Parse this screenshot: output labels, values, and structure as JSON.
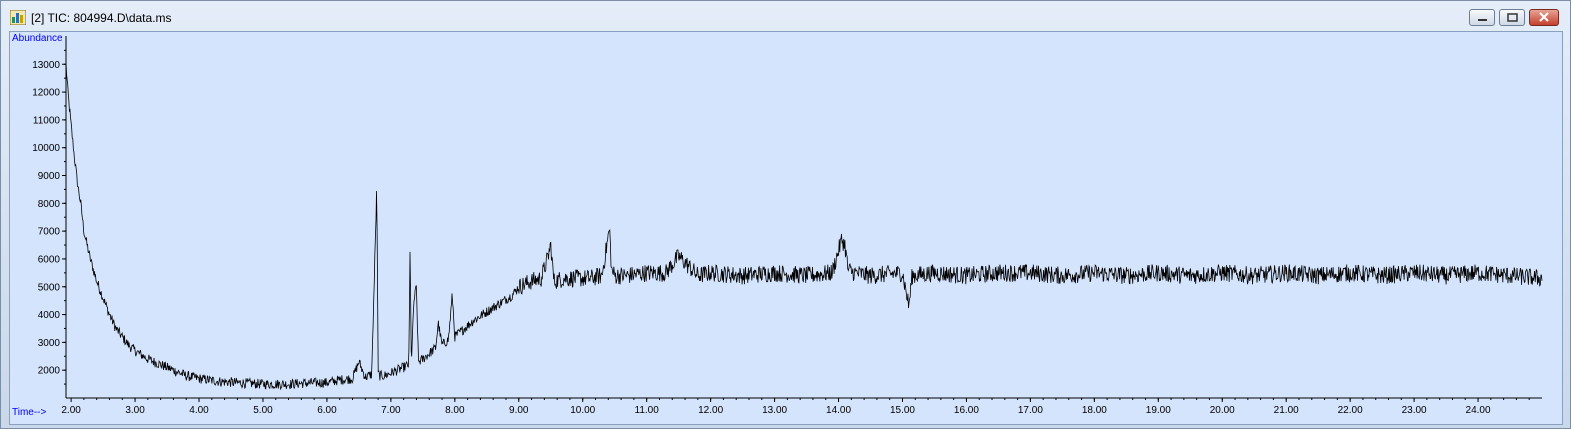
{
  "window": {
    "title": "[2] TIC: 804994.D\\data.ms",
    "icon": "chromatogram-app-icon",
    "controls": [
      "minimize-icon",
      "restore-icon",
      "close-icon"
    ]
  },
  "chart_data": {
    "type": "line",
    "title": "",
    "xlabel": "Time-->",
    "ylabel": "Abundance",
    "xlim": [
      1.92,
      25.0
    ],
    "ylim": [
      1000,
      13800
    ],
    "xticks": [
      2,
      3,
      4,
      5,
      6,
      7,
      8,
      9,
      10,
      11,
      12,
      13,
      14,
      15,
      16,
      17,
      18,
      19,
      20,
      21,
      22,
      23,
      24
    ],
    "xtick_labels": [
      "2.00",
      "3.00",
      "4.00",
      "5.00",
      "6.00",
      "7.00",
      "8.00",
      "9.00",
      "10.00",
      "11.00",
      "12.00",
      "13.00",
      "14.00",
      "15.00",
      "16.00",
      "17.00",
      "18.00",
      "19.00",
      "20.00",
      "21.00",
      "22.00",
      "23.00",
      "24.00"
    ],
    "yticks": [
      2000,
      3000,
      4000,
      5000,
      6000,
      7000,
      8000,
      9000,
      10000,
      11000,
      12000,
      13000
    ],
    "ytick_labels": [
      "2000",
      "3000",
      "4000",
      "5000",
      "6000",
      "7000",
      "8000",
      "9000",
      "10000",
      "11000",
      "12000",
      "13000"
    ],
    "grid": false,
    "legend": "none",
    "line_color": "#000000",
    "background_color": "#d4e4fc",
    "series": [
      {
        "x": [
          1.92,
          1.95,
          2.0,
          2.05,
          2.1,
          2.15,
          2.2,
          2.3,
          2.4,
          2.5,
          2.6,
          2.7,
          2.8,
          2.9,
          3.0,
          3.2,
          3.4,
          3.6,
          3.8,
          4.0,
          4.3,
          4.6,
          5.0,
          5.4,
          5.8,
          6.0,
          6.2,
          6.4,
          6.5,
          6.6,
          6.7,
          6.76,
          6.78,
          6.8,
          6.82,
          6.9,
          7.0,
          7.1,
          7.2,
          7.28,
          7.3,
          7.32,
          7.36,
          7.4,
          7.43,
          7.5,
          7.6,
          7.7,
          7.74,
          7.8,
          7.9,
          7.96,
          8.0,
          8.1,
          8.3,
          8.5,
          8.7,
          8.9,
          9.0,
          9.2,
          9.35,
          9.45,
          9.5,
          9.55,
          9.7,
          9.9,
          10.1,
          10.3,
          10.42,
          10.45,
          10.5,
          10.7,
          11.0,
          11.3,
          11.5,
          11.8,
          12.0,
          12.5,
          13.0,
          13.5,
          13.9,
          14.05,
          14.1,
          14.15,
          14.25,
          14.5,
          15.0,
          15.1,
          15.15,
          15.5,
          16.0,
          16.5,
          17.0,
          17.5,
          18.0,
          18.5,
          19.0,
          19.5,
          20.0,
          20.5,
          21.0,
          21.5,
          22.0,
          22.5,
          23.0,
          23.5,
          24.0,
          24.5,
          25.0
        ],
        "y": [
          13000,
          12000,
          10800,
          9700,
          8700,
          8000,
          7000,
          6000,
          5200,
          4600,
          4000,
          3500,
          3200,
          2900,
          2700,
          2400,
          2200,
          2000,
          1800,
          1700,
          1600,
          1550,
          1500,
          1500,
          1550,
          1550,
          1650,
          1700,
          2300,
          1750,
          1850,
          6900,
          8700,
          1900,
          1800,
          1800,
          1900,
          2000,
          2100,
          2200,
          6300,
          2200,
          4500,
          5000,
          2300,
          2400,
          2600,
          2800,
          3700,
          2900,
          3100,
          4700,
          3200,
          3400,
          3800,
          4100,
          4400,
          4700,
          5000,
          5200,
          5300,
          6000,
          6500,
          5200,
          5300,
          5300,
          5300,
          5400,
          7100,
          5600,
          5400,
          5400,
          5500,
          5500,
          6100,
          5400,
          5500,
          5400,
          5500,
          5400,
          5500,
          6700,
          6500,
          5600,
          5500,
          5400,
          5500,
          4300,
          5400,
          5500,
          5400,
          5500,
          5500,
          5400,
          5500,
          5400,
          5500,
          5400,
          5500,
          5400,
          5500,
          5400,
          5500,
          5400,
          5500,
          5400,
          5500,
          5400,
          5300
        ]
      }
    ]
  }
}
